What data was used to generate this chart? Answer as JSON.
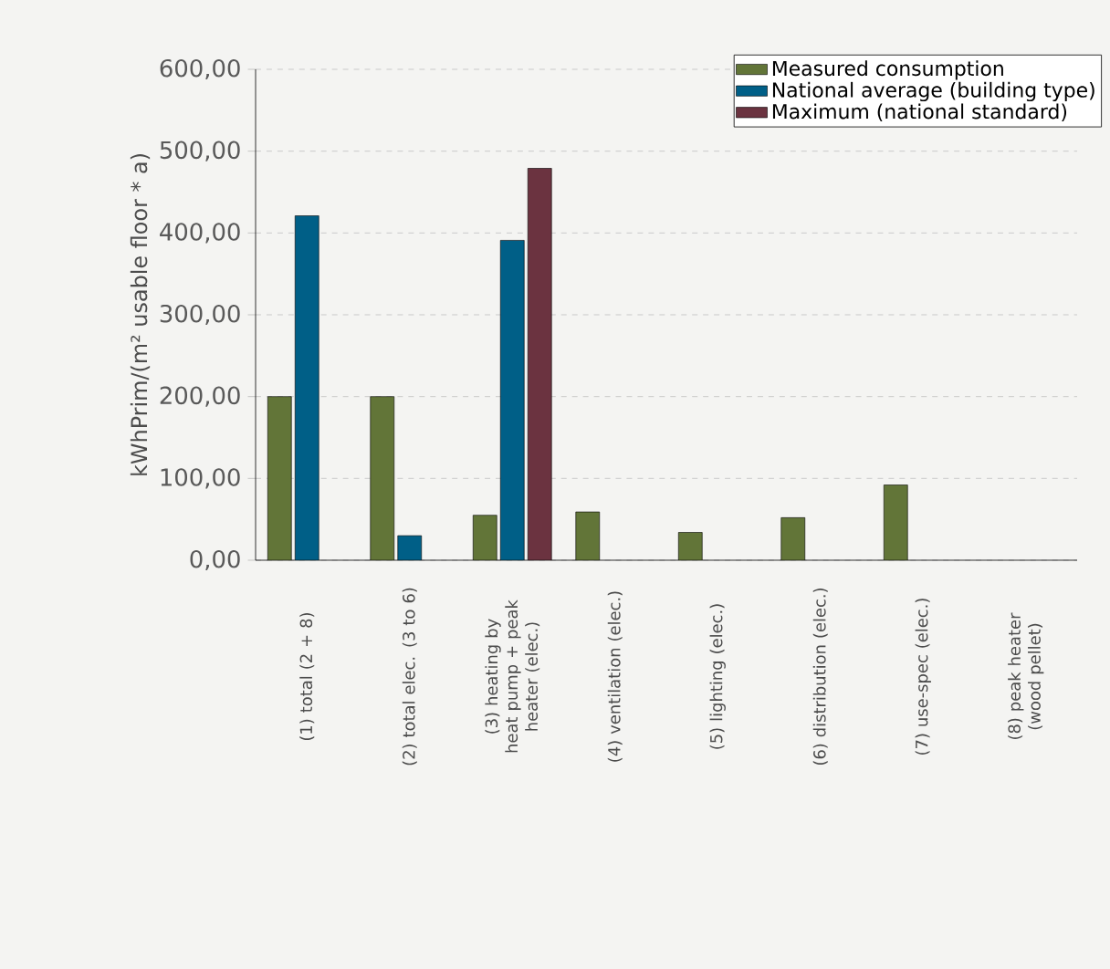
{
  "chart_data": {
    "type": "bar",
    "ylabel": "kWhPrim/(m² usable floor * a)",
    "categories": [
      "(1) total (2 + 8)",
      "(2)  total elec. (3 to 6)",
      "(3)  heating by heat pump + peak heater (elec.)",
      "(4)  ventilation (elec.)",
      "(5)  lighting (elec.)",
      "(6)  distribution (elec.)",
      "(7)  use-spec (elec.)",
      "(8)  peak heater (wood pellet)"
    ],
    "series": [
      {
        "name": "Measured consumption",
        "color": "#627538",
        "values": [
          200,
          200,
          55,
          59,
          34,
          52,
          92,
          null
        ]
      },
      {
        "name": "National average (building type)",
        "color": "#005f87",
        "values": [
          421,
          30,
          391,
          null,
          null,
          null,
          null,
          null
        ]
      },
      {
        "name": "Maximum (national standard)",
        "color": "#6b3340",
        "values": [
          null,
          null,
          479,
          null,
          null,
          null,
          null,
          null
        ]
      }
    ],
    "ylim": [
      0,
      600
    ],
    "yticks": [
      {
        "value": 0,
        "label": "0,00"
      },
      {
        "value": 100,
        "label": "100,00"
      },
      {
        "value": 200,
        "label": "200,00"
      },
      {
        "value": 300,
        "label": "300,00"
      },
      {
        "value": 400,
        "label": "400,00"
      },
      {
        "value": 500,
        "label": "500,00"
      },
      {
        "value": 600,
        "label": "600,00"
      }
    ],
    "grid": "y",
    "legend": "top right"
  }
}
